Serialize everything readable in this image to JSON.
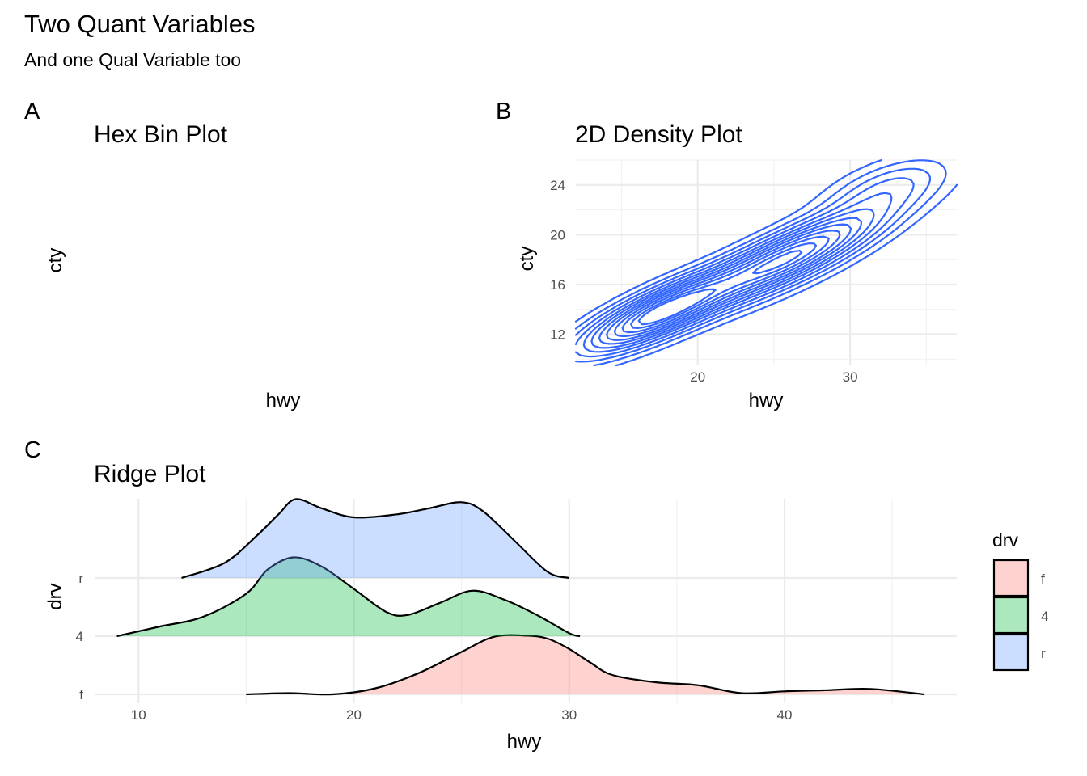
{
  "figure": {
    "title": "Two Quant Variables",
    "subtitle": "And one Qual Variable too"
  },
  "panels": {
    "a": {
      "tag": "A",
      "title": "Hex Bin Plot",
      "xlabel": "hwy",
      "ylabel": "cty"
    },
    "b": {
      "tag": "B",
      "title": "2D Density Plot",
      "xlabel": "hwy",
      "ylabel": "cty"
    },
    "c": {
      "tag": "C",
      "title": "Ridge Plot",
      "xlabel": "hwy",
      "ylabel": "drv",
      "legend_title": "drv"
    }
  },
  "colors": {
    "contour": "#3366ff",
    "f": "#F8766D",
    "4": "#00BA38",
    "r": "#619CFF"
  },
  "chart_data": [
    {
      "type": "hexbin",
      "title": "Hex Bin Plot",
      "xlabel": "hwy",
      "ylabel": "cty",
      "note_visible": "panel renders empty"
    },
    {
      "type": "contour",
      "title": "2D Density Plot",
      "xlabel": "hwy",
      "ylabel": "cty",
      "xlim": [
        12,
        37
      ],
      "ylim": [
        9.5,
        26
      ],
      "x_ticks": [
        20,
        30
      ],
      "y_ticks": [
        12,
        16,
        20,
        24
      ],
      "grid": true,
      "peaks": [
        {
          "hwy": 17.5,
          "cty": 13.7
        },
        {
          "hwy": 26,
          "cty": 18.2
        }
      ]
    },
    {
      "type": "ridgeline",
      "title": "Ridge Plot",
      "xlabel": "hwy",
      "ylabel": "drv",
      "xlim": [
        8,
        48
      ],
      "x_ticks": [
        10,
        20,
        30,
        40
      ],
      "categories": [
        "f",
        "4",
        "r"
      ],
      "legend_position": "right",
      "series": [
        {
          "name": "f",
          "x": [
            15,
            17,
            19,
            21,
            23,
            25,
            26.5,
            28,
            29,
            30,
            31,
            32,
            34,
            36,
            38,
            40,
            42,
            44,
            46.5
          ],
          "density": [
            0.0,
            0.02,
            0.0,
            0.1,
            0.35,
            0.7,
            0.95,
            0.97,
            0.92,
            0.75,
            0.52,
            0.32,
            0.2,
            0.15,
            0.02,
            0.05,
            0.07,
            0.09,
            0.0
          ]
        },
        {
          "name": "4",
          "x": [
            9,
            11,
            13,
            15,
            16,
            17.2,
            18.5,
            20,
            21.5,
            22.5,
            24,
            25.5,
            27,
            28.5,
            30,
            30.5
          ],
          "density": [
            0.0,
            0.16,
            0.32,
            0.7,
            1.1,
            1.3,
            1.15,
            0.78,
            0.4,
            0.35,
            0.55,
            0.75,
            0.6,
            0.35,
            0.05,
            0.0
          ]
        },
        {
          "name": "r",
          "x": [
            12,
            14,
            15.5,
            16.5,
            17.3,
            18.5,
            20,
            22,
            23.5,
            25,
            26,
            27.5,
            29,
            30
          ],
          "density": [
            0.0,
            0.25,
            0.7,
            1.05,
            1.3,
            1.15,
            1.0,
            1.05,
            1.15,
            1.25,
            1.1,
            0.6,
            0.1,
            0.0
          ]
        }
      ]
    }
  ]
}
